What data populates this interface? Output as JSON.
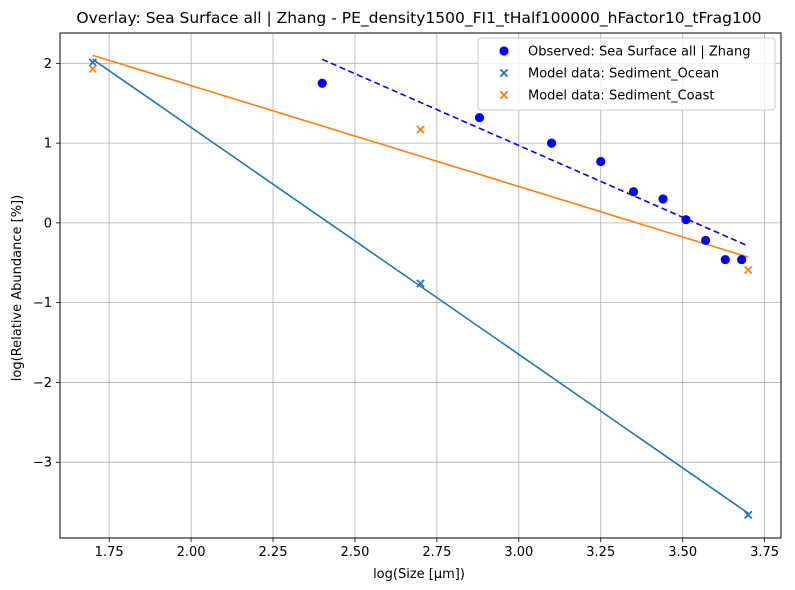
{
  "chart_data": {
    "type": "scatter",
    "title": "Overlay: Sea Surface all | Zhang - PE_density1500_FI1_tHalf100000_hFactor10_tFrag100",
    "xlabel": "log(Size [µm])",
    "ylabel": "log(Relative Abundance [%])",
    "xlim": [
      1.6,
      3.8
    ],
    "ylim": [
      -3.95,
      2.38
    ],
    "xticks": [
      1.75,
      2.0,
      2.25,
      2.5,
      2.75,
      3.0,
      3.25,
      3.5,
      3.75
    ],
    "xtick_labels": [
      "1.75",
      "2.00",
      "2.25",
      "2.50",
      "2.75",
      "3.00",
      "3.25",
      "3.50",
      "3.75"
    ],
    "yticks": [
      -3,
      -2,
      -1,
      0,
      1,
      2
    ],
    "ytick_labels": [
      "−3",
      "−2",
      "−1",
      "0",
      "1",
      "2"
    ],
    "grid": true,
    "legend_position": "top-right",
    "series": [
      {
        "name": "Observed: Sea Surface all | Zhang",
        "kind": "scatter",
        "marker": "circle",
        "color": "#0000ff",
        "x": [
          2.4,
          2.88,
          3.1,
          3.25,
          3.35,
          3.44,
          3.51,
          3.57,
          3.63,
          3.68
        ],
        "y": [
          1.75,
          1.32,
          1.0,
          0.77,
          0.39,
          0.3,
          0.04,
          -0.22,
          -0.46,
          -0.46
        ]
      },
      {
        "name": "Model data: Sediment_Ocean",
        "kind": "scatter",
        "marker": "x",
        "color": "#1f77b4",
        "x": [
          1.7,
          2.7,
          3.7
        ],
        "y": [
          2.01,
          -0.76,
          -3.66
        ]
      },
      {
        "name": "Model data: Sediment_Coast",
        "kind": "scatter",
        "marker": "x",
        "color": "#ff7f0e",
        "x": [
          1.7,
          2.7,
          3.7
        ],
        "y": [
          1.93,
          1.17,
          -0.59
        ]
      }
    ],
    "fit_lines": [
      {
        "color": "#0000ff",
        "dashed": true,
        "x": [
          2.4,
          3.7
        ],
        "y": [
          2.05,
          -0.29
        ]
      },
      {
        "color": "#1f77b4",
        "dashed": false,
        "x": [
          1.7,
          3.7
        ],
        "y": [
          2.05,
          -3.64
        ]
      },
      {
        "color": "#ff7f0e",
        "dashed": false,
        "x": [
          1.7,
          3.7
        ],
        "y": [
          2.1,
          -0.43
        ]
      }
    ]
  }
}
